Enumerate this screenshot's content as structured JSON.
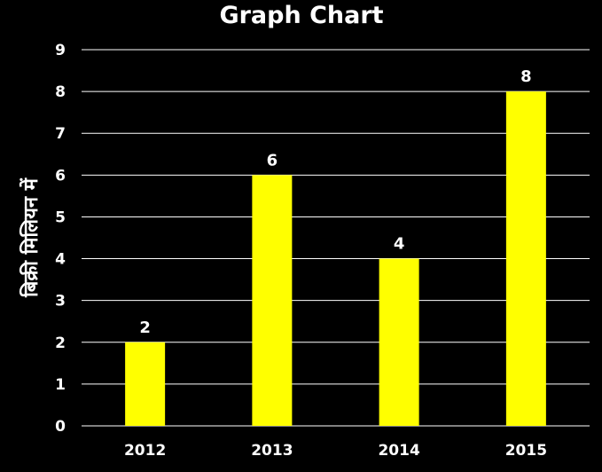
{
  "chart_data": {
    "type": "bar",
    "title": "Graph Chart",
    "xlabel": "",
    "ylabel": "बिक्री मिलियन में",
    "categories": [
      "2012",
      "2013",
      "2014",
      "2015"
    ],
    "values": [
      2,
      6,
      4,
      8
    ],
    "ylim": [
      0,
      9
    ],
    "yticks": [
      0,
      1,
      2,
      3,
      4,
      5,
      6,
      7,
      8,
      9
    ],
    "grid": true,
    "legend": "none",
    "show_data_labels": true,
    "colors": {
      "background": "#000000",
      "bar": "#ffff00",
      "gridline": "#ffffff",
      "text": "#ffffff"
    }
  }
}
